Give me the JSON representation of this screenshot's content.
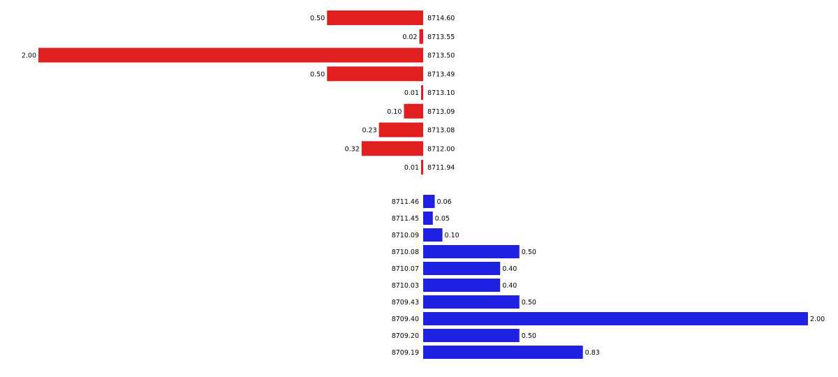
{
  "chart_data": {
    "type": "bar",
    "orientation": "horizontal",
    "grid": false,
    "axes_visible": false,
    "value_range": [
      0,
      2
    ],
    "series": [
      {
        "side": "asks",
        "color": "#e02020",
        "prices": [
          "8714.60",
          "8713.55",
          "8713.50",
          "8713.49",
          "8713.10",
          "8713.09",
          "8713.08",
          "8712.00",
          "8711.94"
        ],
        "values": [
          0.5,
          0.02,
          2.0,
          0.5,
          0.01,
          0.1,
          0.23,
          0.32,
          0.01
        ],
        "value_labels": [
          "0.50",
          "0.02",
          "2.00",
          "0.50",
          "0.01",
          "0.10",
          "0.23",
          "0.32",
          "0.01"
        ]
      },
      {
        "side": "bids",
        "color": "#2020e0",
        "prices": [
          "8711.46",
          "8711.45",
          "8710.09",
          "8710.08",
          "8710.07",
          "8710.03",
          "8709.43",
          "8709.40",
          "8709.20",
          "8709.19"
        ],
        "values": [
          0.06,
          0.05,
          0.1,
          0.5,
          0.4,
          0.4,
          0.5,
          2.0,
          0.5,
          0.83
        ],
        "value_labels": [
          "0.06",
          "0.05",
          "0.10",
          "0.50",
          "0.40",
          "0.40",
          "0.50",
          "2.00",
          "0.50",
          "0.83"
        ]
      }
    ]
  }
}
